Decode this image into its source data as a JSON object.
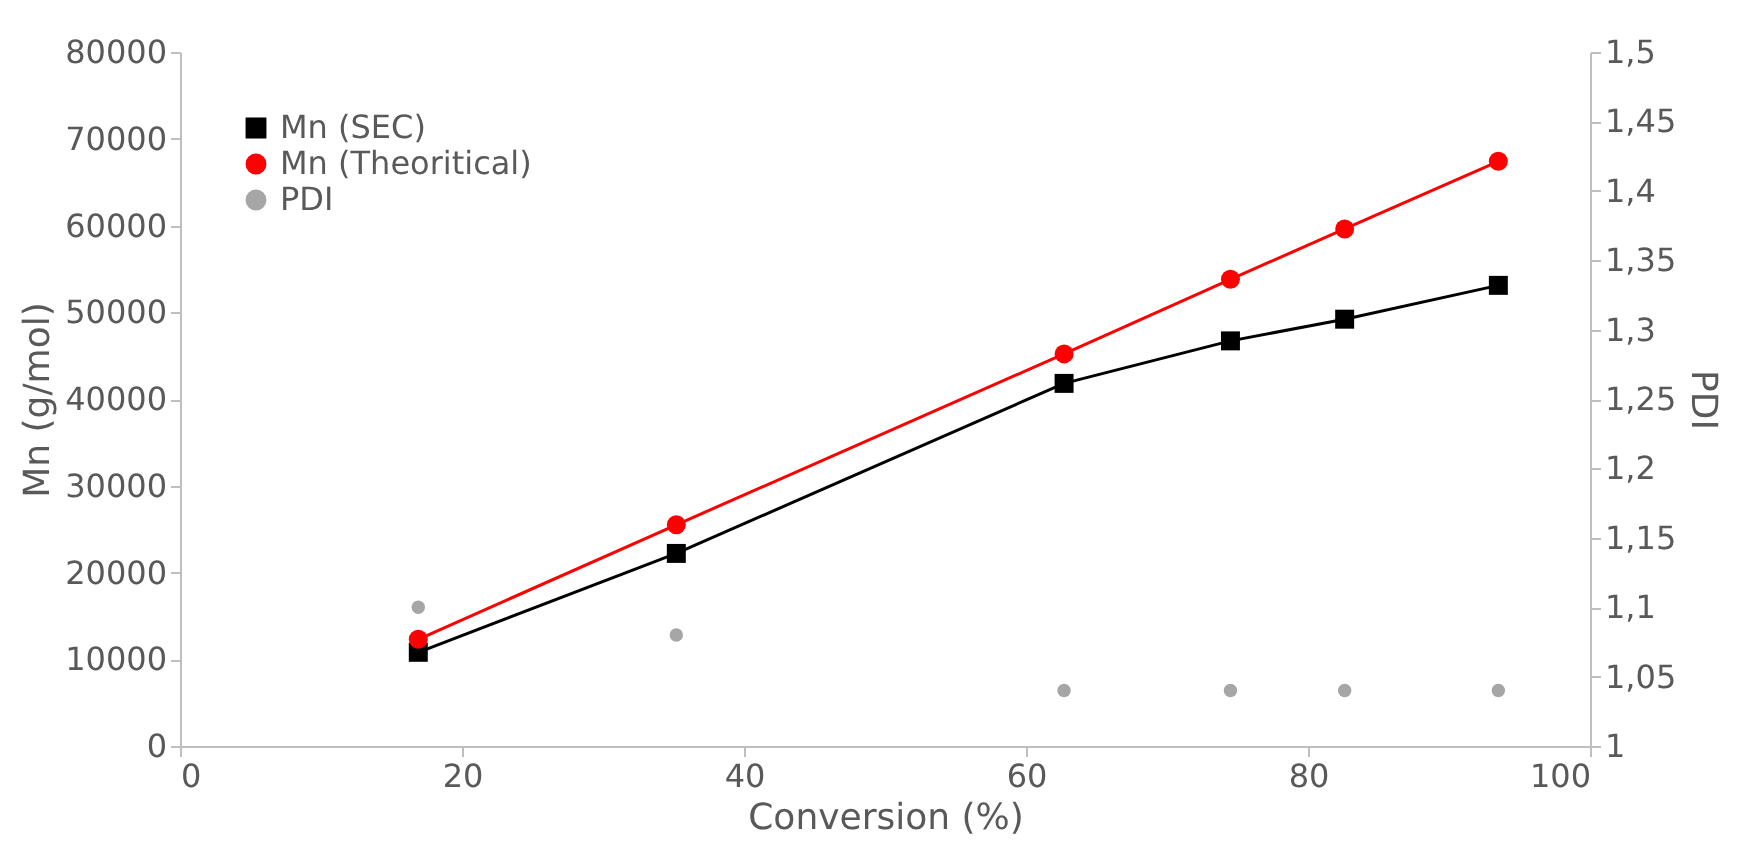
{
  "chart_data": {
    "type": "line",
    "xlabel": "Conversion (%)",
    "ylabel": "Mn (g/mol)",
    "y2label": "PDI",
    "x": [
      16.9,
      35.2,
      62.7,
      74.5,
      82.6,
      93.5
    ],
    "series": [
      {
        "name": "Mn (SEC)",
        "color": "#000000",
        "marker": "square",
        "values": [
          10800,
          22200,
          41800,
          46700,
          49200,
          53100
        ]
      },
      {
        "name": "Mn (Theoritical)",
        "color": "#ff0000",
        "marker": "circle",
        "values": [
          12300,
          25500,
          45200,
          53800,
          59600,
          67400
        ]
      },
      {
        "name": "PDI",
        "type": "scatter",
        "axis": "y2",
        "color": "#a6a6a6",
        "marker": "circle",
        "values": [
          1.1,
          1.08,
          1.04,
          1.04,
          1.04,
          1.04
        ]
      }
    ],
    "xlim": [
      0,
      100
    ],
    "xticks": [
      0,
      20,
      40,
      60,
      80,
      100
    ],
    "ylim": [
      0,
      80000
    ],
    "yticks": [
      0,
      10000,
      20000,
      30000,
      40000,
      50000,
      60000,
      70000,
      80000
    ],
    "y2lim": [
      1,
      1.5
    ],
    "y2ticks": [
      1,
      {
        "value": 1.05,
        "label": "1,05"
      },
      {
        "value": 1.1,
        "label": "1,1"
      },
      {
        "value": 1.15,
        "label": "1,15"
      },
      {
        "value": 1.2,
        "label": "1,2"
      },
      {
        "value": 1.25,
        "label": "1,25"
      },
      {
        "value": 1.3,
        "label": "1,3"
      },
      {
        "value": 1.35,
        "label": "1,35"
      },
      {
        "value": 1.4,
        "label": "1,4"
      },
      {
        "value": 1.45,
        "label": "1,45"
      },
      {
        "value": 1.5,
        "label": "1,5"
      }
    ],
    "grid": false,
    "legend": "top left"
  }
}
